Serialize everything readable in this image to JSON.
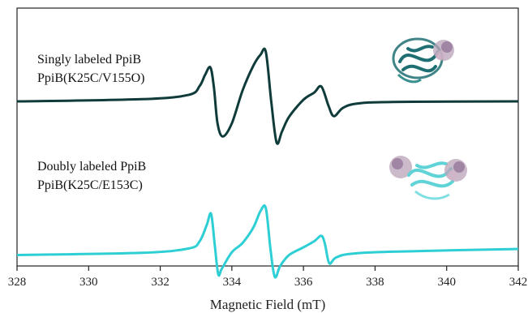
{
  "chart_data": {
    "type": "line",
    "title": "",
    "xlabel": "Magnetic Field (mT)",
    "ylabel": "",
    "xlim": [
      328,
      342
    ],
    "ylim": [
      -3.0,
      1.7
    ],
    "xticks": [
      328,
      330,
      332,
      334,
      336,
      338,
      340,
      342
    ],
    "yticks_visible": false,
    "grid": false,
    "legend": "none",
    "annotations": [
      {
        "text": "Singly labeled PpiB",
        "series": "upper"
      },
      {
        "text": "PpiB(K25C/V155O)",
        "series": "upper"
      },
      {
        "text": "Doubly labeled PpiB",
        "series": "lower"
      },
      {
        "text": "PpiB(K25C/E153C)",
        "series": "lower"
      }
    ],
    "insets": [
      {
        "name": "protein-structure-singly-labeled",
        "color": "#1f6f72",
        "depicts": "protein ribbon structure with one spin-label cloud"
      },
      {
        "name": "protein-structure-doubly-labeled",
        "color": "#5fd3d6",
        "depicts": "protein ribbon structure with two spin-label clouds"
      }
    ],
    "series": [
      {
        "color": "#0f3b3a",
        "baseline": 0.0,
        "x": [
          328.0,
          331.5,
          332.8,
          333.1,
          333.25,
          333.4,
          333.5,
          333.6,
          333.75,
          334.0,
          334.3,
          334.6,
          334.8,
          334.95,
          335.1,
          335.25,
          335.4,
          335.6,
          336.0,
          336.3,
          336.5,
          336.7,
          336.85,
          337.1,
          337.5,
          338.5,
          342.0
        ],
        "y": [
          0.0,
          0.04,
          0.12,
          0.28,
          0.48,
          0.62,
          0.25,
          -0.4,
          -0.64,
          -0.4,
          0.2,
          0.65,
          0.85,
          0.9,
          0.0,
          -0.75,
          -0.55,
          -0.28,
          0.03,
          0.16,
          0.27,
          -0.08,
          -0.27,
          -0.12,
          -0.04,
          -0.01,
          0.0
        ]
      },
      {
        "color": "#2ecfd4",
        "baseline": -2.8,
        "x": [
          328.0,
          331.5,
          332.8,
          333.1,
          333.3,
          333.42,
          333.52,
          333.62,
          333.72,
          334.0,
          334.3,
          334.6,
          334.8,
          334.95,
          335.08,
          335.2,
          335.35,
          335.6,
          336.0,
          336.3,
          336.5,
          336.6,
          336.72,
          336.9,
          337.3,
          338.5,
          342.0
        ],
        "y": [
          -2.8,
          -2.76,
          -2.68,
          -2.55,
          -2.25,
          -2.05,
          -2.6,
          -3.15,
          -3.05,
          -2.75,
          -2.58,
          -2.3,
          -2.0,
          -1.95,
          -2.7,
          -3.2,
          -3.0,
          -2.8,
          -2.66,
          -2.55,
          -2.45,
          -2.6,
          -2.95,
          -2.85,
          -2.78,
          -2.74,
          -2.69
        ]
      }
    ]
  }
}
